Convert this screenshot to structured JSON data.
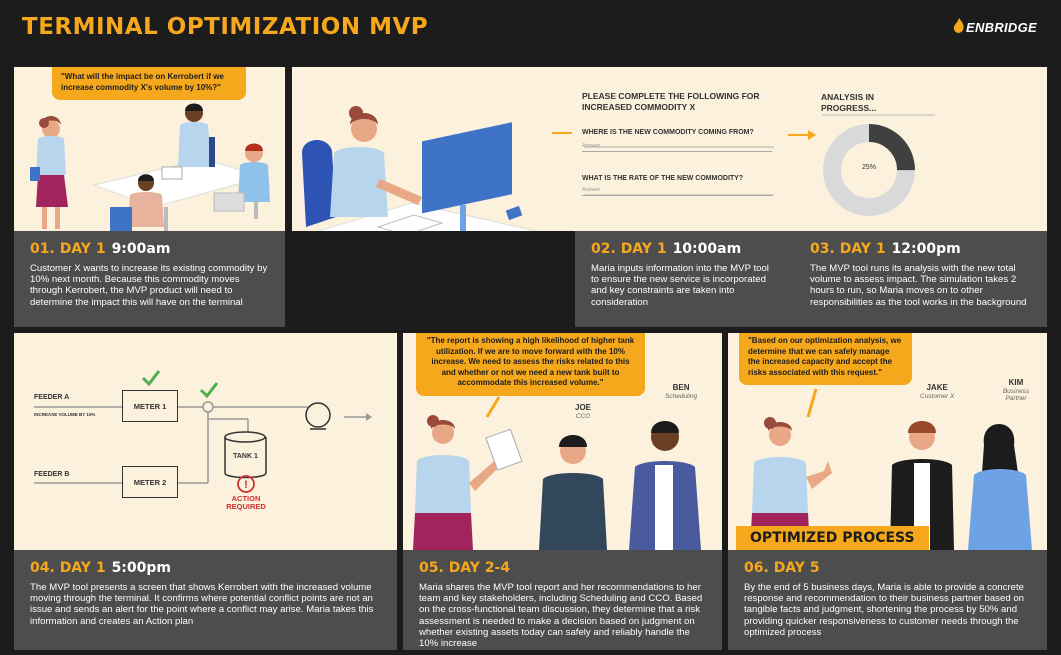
{
  "header": {
    "title": "TERMINAL OPTIMIZATION MVP",
    "brand": "ENBRIDGE"
  },
  "panels": {
    "p1": {
      "bubble": "\"What will the impact be on Kerrobert if we increase commodity X's volume by 10%?\"",
      "number": "01.",
      "day": "DAY 1",
      "time": "9:00am",
      "text": "Customer X wants to increase its existing commodity by 10% next month. Because this commodity moves through Kerrobert, the MVP product will need to determine the impact this will have on the terminal"
    },
    "p2": {
      "form_heading": "PLEASE COMPLETE THE FOLLOWING FOR INCREASED COMMODITY X",
      "question1": "WHERE IS THE NEW COMMODITY COMING FROM?",
      "answer1": "Answer",
      "question2": "WHAT IS THE RATE OF THE NEW COMMODITY?",
      "answer2": "Answer",
      "number": "02.",
      "day": "DAY 1",
      "time": "10:00am",
      "text": "Maria inputs information into the MVP tool to ensure the new service is incorporated and key constraints are taken into consideration"
    },
    "p3": {
      "analysis_label": "ANALYSIS IN PROGRESS...",
      "progress_label": "25%",
      "progress": 0.25,
      "number": "03.",
      "day": "DAY 1",
      "time": "12:00pm",
      "text": "The MVP tool runs its analysis with the new total volume to assess impact. The simulation takes 2 hours to run, so Maria moves on to other responsibilities as the tool works in the background"
    },
    "p4": {
      "feeder_a": "FEEDER A",
      "feeder_a_note": "INCREASE VOLUME BY 10%",
      "feeder_b": "FEEDER B",
      "meter1": "METER 1",
      "meter2": "METER 2",
      "tank": "TANK 1",
      "alert": "ACTION REQUIRED",
      "number": "04.",
      "day": "DAY 1",
      "time": "5:00pm",
      "text": "The MVP tool presents a screen that shows Kerrobert with the increased volume moving through the terminal. It confirms where potential conflict points are not an issue and sends an alert for the point where a conflict may arise. Maria takes this information and creates an Action plan"
    },
    "p5": {
      "bubble": "\"The report is showing a high likelihood of higher tank utilization. If we are to move forward with the 10% increase. We need to assess the risks related to this and whether or not we need a new tank built to accommodate this increased volume.\"",
      "person1_name": "JOE",
      "person1_role": "CCO",
      "person2_name": "BEN",
      "person2_role": "Scheduling",
      "number": "05.",
      "day": "DAY 2-4",
      "text": "Maria shares the MVP tool report and her recommendations to her team and key stakeholders, including Scheduling and CCO. Based on the cross-functional team discussion, they determine that a risk assessment is needed to make a decision based on judgment on whether existing assets today can safely and reliably handle the 10% increase"
    },
    "p6": {
      "bubble": "\"Based on our optimization analysis, we determine that we can safely manage the increased capacity and accept the risks associated with this request.\"",
      "person1_name": "JAKE",
      "person1_role": "Customer X",
      "person2_name": "KIM",
      "person2_role": "Business Partner",
      "banner": "OPTIMIZED PROCESS",
      "number": "06.",
      "day": "DAY 5",
      "text": "By the end of 5 business days, Maria is able to provide a concrete response and recommendation to their business partner based on tangible facts and judgment, shortening the process by 50% and providing quicker responsiveness to customer needs through the optimized process"
    }
  },
  "colors": {
    "accent": "#f5a81c",
    "panel_bg": "#fbf1dc",
    "caption_bg": "#4d4d4d",
    "page_bg": "#1c1c1c",
    "check": "#4caf50",
    "alert": "#d32f2f"
  }
}
